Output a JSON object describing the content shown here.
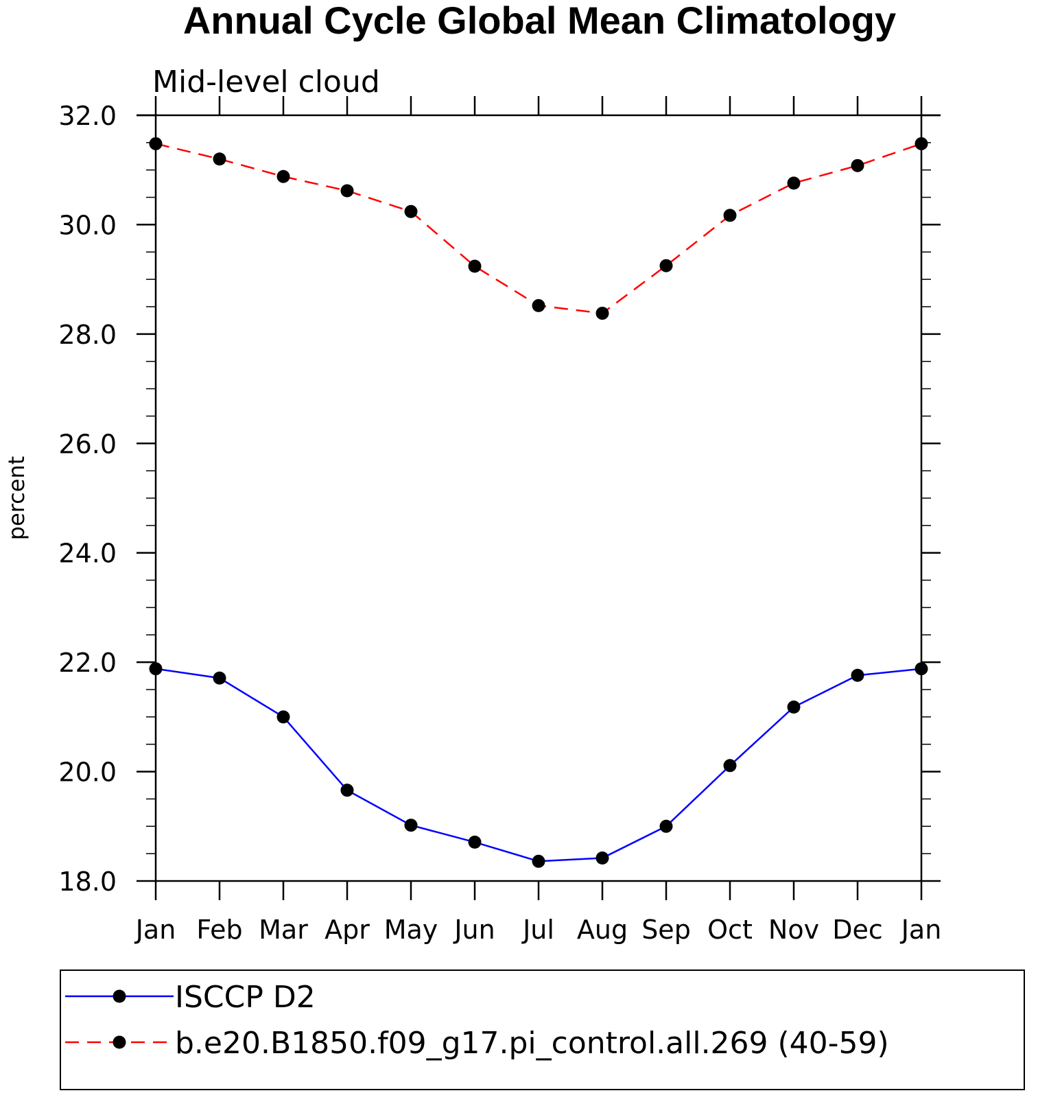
{
  "title": "Annual Cycle Global Mean Climatology",
  "chart_data": {
    "type": "line",
    "subtitle": "Mid-level cloud",
    "ylabel": "percent",
    "xlabel": "",
    "categories": [
      "Jan",
      "Feb",
      "Mar",
      "Apr",
      "May",
      "Jun",
      "Jul",
      "Aug",
      "Sep",
      "Oct",
      "Nov",
      "Dec",
      "Jan"
    ],
    "ylim": [
      18.0,
      32.0
    ],
    "yticks": [
      "18.0",
      "20.0",
      "22.0",
      "24.0",
      "26.0",
      "28.0",
      "30.0",
      "32.0"
    ],
    "grid": false,
    "legend_position": "bottom",
    "series": [
      {
        "name": "ISCCP D2",
        "color": "#0000ff",
        "dash": "solid",
        "values": [
          21.88,
          21.71,
          21.0,
          19.66,
          19.02,
          18.71,
          18.36,
          18.42,
          19.0,
          20.11,
          21.18,
          21.76,
          21.88
        ]
      },
      {
        "name": "b.e20.B1850.f09_g17.pi_control.all.269 (40-59)",
        "color": "#ff0000",
        "dash": "dashed",
        "values": [
          31.48,
          31.2,
          30.88,
          30.62,
          30.24,
          29.24,
          28.52,
          28.38,
          29.25,
          30.17,
          30.76,
          31.08,
          31.48
        ]
      }
    ]
  }
}
